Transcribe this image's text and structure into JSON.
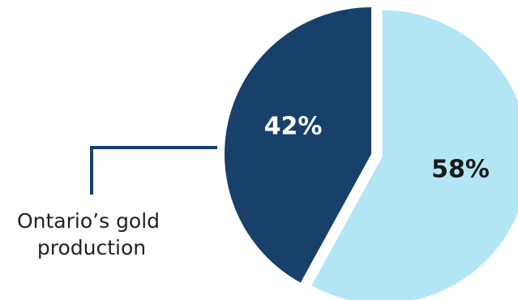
{
  "chart_data": {
    "type": "pie",
    "slices": [
      {
        "label": "42%",
        "value": 42,
        "color": "#17406a",
        "label_color": "#ffffff",
        "exploded": false
      },
      {
        "label": "58%",
        "value": 58,
        "color": "#b3e6f5",
        "label_color": "#1b1b1b",
        "exploded": true
      }
    ],
    "annotation": {
      "lines": [
        "Ontario’s gold",
        "production"
      ],
      "target_slice": 0,
      "leader_color": "#17406a"
    },
    "legend": "none"
  }
}
